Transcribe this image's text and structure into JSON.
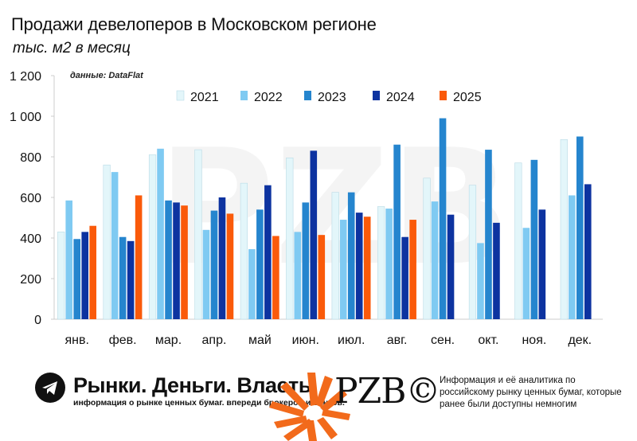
{
  "header": {
    "title": "Продажи девелоперов в Московском регионе",
    "subtitle": "тыс. м2 в месяц"
  },
  "source_note": "данные: DataFlat",
  "watermark": "PZB",
  "colors": {
    "2021": "#e3f6fa",
    "2022": "#7fcaf2",
    "2023": "#2585ce",
    "2024": "#0d33a0",
    "2025": "#fa5a0a",
    "axis": "#cccccc",
    "accent_orange": "#f26a1b"
  },
  "chart_data": {
    "type": "bar",
    "title": "Продажи девелоперов в Московском регионе",
    "subtitle": "тыс. м2 в месяц",
    "categories": [
      "янв.",
      "фев.",
      "мар.",
      "апр.",
      "май",
      "июн.",
      "июл.",
      "авг.",
      "сен.",
      "окт.",
      "ноя.",
      "дек."
    ],
    "series": [
      {
        "name": "2021",
        "values": [
          430,
          760,
          810,
          835,
          670,
          795,
          625,
          555,
          695,
          660,
          770,
          885
        ]
      },
      {
        "name": "2022",
        "values": [
          585,
          725,
          840,
          440,
          345,
          430,
          490,
          545,
          580,
          375,
          450,
          610
        ]
      },
      {
        "name": "2023",
        "values": [
          395,
          405,
          585,
          535,
          540,
          575,
          625,
          860,
          990,
          835,
          785,
          900
        ]
      },
      {
        "name": "2024",
        "values": [
          430,
          385,
          575,
          600,
          660,
          830,
          525,
          405,
          515,
          475,
          540,
          665
        ]
      },
      {
        "name": "2025",
        "values": [
          460,
          610,
          560,
          520,
          410,
          415,
          505,
          490,
          null,
          null,
          null,
          null
        ]
      }
    ],
    "ylim": [
      0,
      1200
    ],
    "yticks": [
      0,
      200,
      400,
      600,
      800,
      1000,
      1200
    ],
    "ytick_labels": [
      "0",
      "200",
      "400",
      "600",
      "800",
      "1 000",
      "1 200"
    ],
    "legend_position": "top-center",
    "grid": false
  },
  "footer": {
    "brand": "Рынки. Деньги. Власть.",
    "tagline": "информация о рынке ценных бумаг. впереди брокеров и банков.",
    "logo_text": "PZB©",
    "description": "Информация и её аналитика по российскому рынку ценных бумаг, которые ранее были доступны немногим"
  }
}
